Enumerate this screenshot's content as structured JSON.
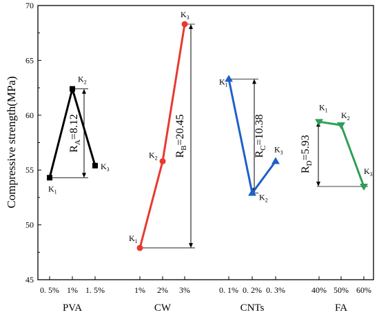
{
  "chart_data": {
    "type": "line",
    "ylabel": "Compressive strength(MPa)",
    "ylim": [
      45,
      70
    ],
    "yticks": [
      45,
      50,
      55,
      60,
      65,
      70
    ],
    "grid": false,
    "groups": [
      {
        "name": "PVA",
        "color": "#000000",
        "marker": "square",
        "x": [
          "0. 5%",
          "1%",
          "1. 5%"
        ],
        "values": [
          54.3,
          62.4,
          55.4
        ],
        "point_labels": [
          "K",
          "K",
          "K"
        ],
        "point_label_subs": [
          "1",
          "2",
          "3"
        ],
        "range_prefix": "R",
        "range_sub": "A",
        "range_text": "=8.12",
        "range_value": 8.12
      },
      {
        "name": "CW",
        "color": "#e8392f",
        "marker": "circle",
        "x": [
          "1%",
          "2%",
          "3%"
        ],
        "values": [
          47.9,
          55.8,
          68.3
        ],
        "point_labels": [
          "K",
          "K",
          "K"
        ],
        "point_label_subs": [
          "1",
          "2",
          "3"
        ],
        "range_prefix": "R",
        "range_sub": "B",
        "range_text": "=20.45",
        "range_value": 20.45
      },
      {
        "name": "CNTs",
        "color": "#1f5fc8",
        "marker": "triangle-up",
        "x": [
          "0. 1%",
          "0. 2%",
          "0. 3%"
        ],
        "values": [
          63.3,
          52.9,
          55.8
        ],
        "point_labels": [
          "K",
          "K",
          "K"
        ],
        "point_label_subs": [
          "1",
          "2",
          "3"
        ],
        "range_prefix": "R",
        "range_sub": "C",
        "range_text": "=10.38",
        "range_value": 10.38
      },
      {
        "name": "FA",
        "color": "#2f9e57",
        "marker": "triangle-down",
        "x": [
          "40%",
          "50%",
          "60%"
        ],
        "values": [
          59.4,
          59.1,
          53.5
        ],
        "point_labels": [
          "K",
          "K",
          "K"
        ],
        "point_label_subs": [
          "1",
          "2",
          "3"
        ],
        "range_prefix": "R",
        "range_sub": "D",
        "range_text": "=5.93",
        "range_value": 5.93
      }
    ]
  }
}
